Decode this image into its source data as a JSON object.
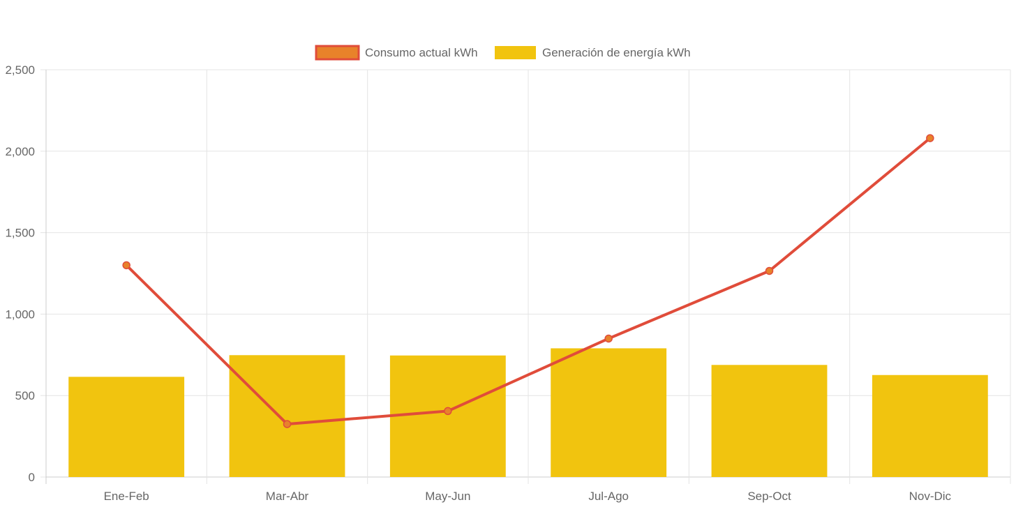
{
  "chart_data": {
    "type": "bar",
    "title": "",
    "xlabel": "",
    "ylabel": "",
    "categories": [
      "Ene-Feb",
      "Mar-Abr",
      "May-Jun",
      "Jul-Ago",
      "Sep-Oct",
      "Nov-Dic"
    ],
    "ylim": [
      0,
      2500
    ],
    "yticks": [
      0,
      500,
      1000,
      1500,
      2000,
      2500
    ],
    "ytick_labels": [
      "0",
      "500",
      "1,000",
      "1,500",
      "2,000",
      "2,500"
    ],
    "grid": true,
    "legend_position": "top-center",
    "series": [
      {
        "name": "Consumo actual kWh",
        "type": "line",
        "values": [
          1300,
          325,
          405,
          850,
          1265,
          2080
        ],
        "color": "#e04c3a",
        "point_color": "#e8822a"
      },
      {
        "name": "Generación de energía kWh",
        "type": "bar",
        "values": [
          615,
          748,
          746,
          790,
          688,
          626
        ],
        "color": "#f1c40f"
      }
    ]
  }
}
